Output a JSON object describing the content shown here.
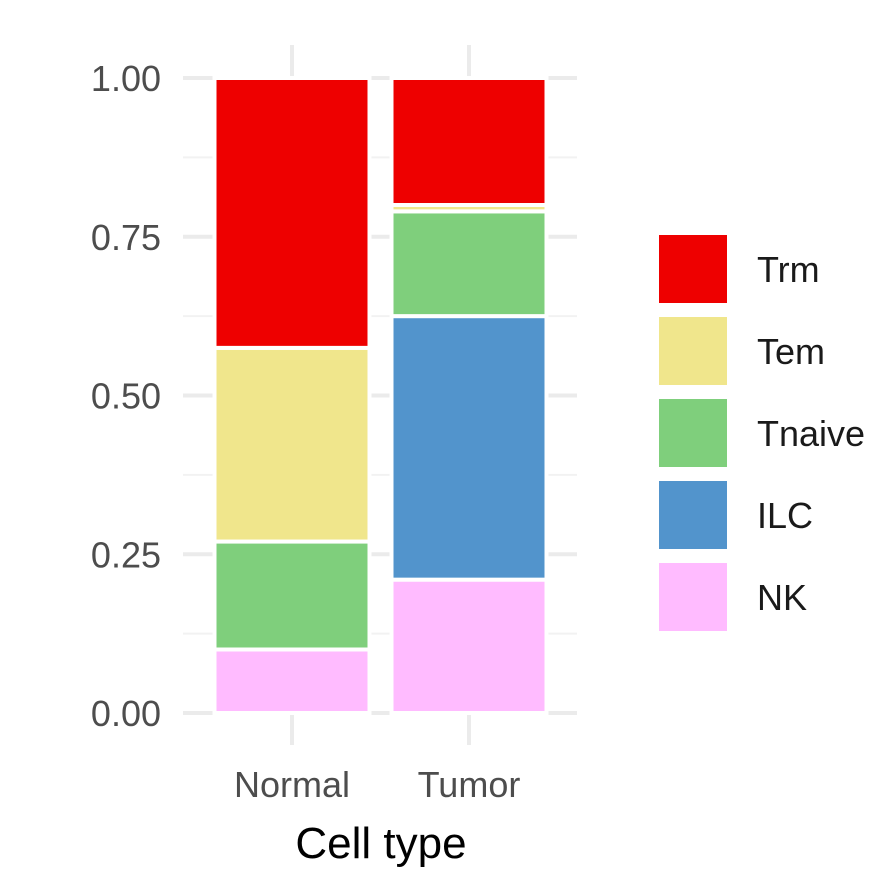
{
  "chart_data": {
    "type": "bar",
    "stacked": true,
    "categories": [
      "Normal",
      "Tumor"
    ],
    "series": [
      {
        "name": "NK",
        "color": "#FFBBFF",
        "values": [
          0.1,
          0.21
        ]
      },
      {
        "name": "ILC",
        "color": "#5294CC",
        "values": [
          0.0,
          0.415
        ]
      },
      {
        "name": "Tnaive",
        "color": "#7FCF7C",
        "values": [
          0.17,
          0.165
        ]
      },
      {
        "name": "Tem",
        "color": "#F0E68C",
        "values": [
          0.305,
          0.01
        ]
      },
      {
        "name": "Trm",
        "color": "#EE0000",
        "values": [
          0.425,
          0.2
        ]
      }
    ],
    "legend_order": [
      "Trm",
      "Tem",
      "Tnaive",
      "ILC",
      "NK"
    ],
    "xlabel": "Cell type",
    "ylabel": "",
    "ylim": [
      0,
      1
    ],
    "yticks": [
      "0.00",
      "0.25",
      "0.50",
      "0.75",
      "1.00"
    ],
    "grid": true,
    "legend_position": "right"
  }
}
